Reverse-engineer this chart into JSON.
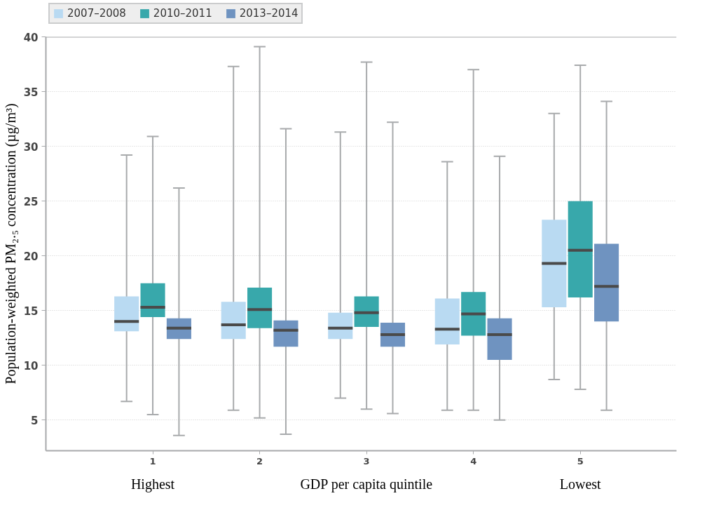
{
  "chart_data": {
    "type": "box",
    "categories": [
      "1",
      "2",
      "3",
      "4",
      "5"
    ],
    "xlabel": "GDP per capita quintile",
    "ylabel": "Population-weighted PM₂.₅ concentration (µg/m³)",
    "annotations": [
      "Highest",
      "Lowest"
    ],
    "ylim": [
      2.2,
      40
    ],
    "yticks": [
      5,
      10,
      15,
      20,
      25,
      30,
      35,
      40
    ],
    "grid": "y",
    "legend": "top left",
    "series": [
      {
        "name": "2007–2008",
        "color": "#b9daf2",
        "boxes": [
          {
            "low": 6.7,
            "q1": 13.1,
            "median": 14.0,
            "q3": 16.3,
            "high": 29.2
          },
          {
            "low": 5.9,
            "q1": 12.4,
            "median": 13.7,
            "q3": 15.8,
            "high": 37.3
          },
          {
            "low": 7.0,
            "q1": 12.4,
            "median": 13.4,
            "q3": 14.8,
            "high": 31.3
          },
          {
            "low": 5.9,
            "q1": 11.9,
            "median": 13.3,
            "q3": 16.1,
            "high": 28.6
          },
          {
            "low": 8.7,
            "q1": 15.3,
            "median": 19.3,
            "q3": 23.3,
            "high": 33.0
          }
        ]
      },
      {
        "name": "2010–2011",
        "color": "#38a8ab",
        "boxes": [
          {
            "low": 5.5,
            "q1": 14.4,
            "median": 15.3,
            "q3": 17.5,
            "high": 30.9
          },
          {
            "low": 5.2,
            "q1": 13.4,
            "median": 15.1,
            "q3": 17.1,
            "high": 39.1
          },
          {
            "low": 6.0,
            "q1": 13.5,
            "median": 14.8,
            "q3": 16.3,
            "high": 37.7
          },
          {
            "low": 5.9,
            "q1": 12.7,
            "median": 14.7,
            "q3": 16.7,
            "high": 37.0
          },
          {
            "low": 7.8,
            "q1": 16.2,
            "median": 20.5,
            "q3": 25.0,
            "high": 37.4
          }
        ]
      },
      {
        "name": "2013–2014",
        "color": "#6f93c0",
        "boxes": [
          {
            "low": 3.6,
            "q1": 12.4,
            "median": 13.4,
            "q3": 14.3,
            "high": 26.2
          },
          {
            "low": 3.7,
            "q1": 11.7,
            "median": 13.2,
            "q3": 14.1,
            "high": 31.6
          },
          {
            "low": 5.6,
            "q1": 11.7,
            "median": 12.8,
            "q3": 13.9,
            "high": 32.2
          },
          {
            "low": 5.0,
            "q1": 10.5,
            "median": 12.8,
            "q3": 14.3,
            "high": 29.1
          },
          {
            "low": 5.9,
            "q1": 14.0,
            "median": 17.2,
            "q3": 21.1,
            "high": 34.1
          }
        ]
      }
    ]
  }
}
